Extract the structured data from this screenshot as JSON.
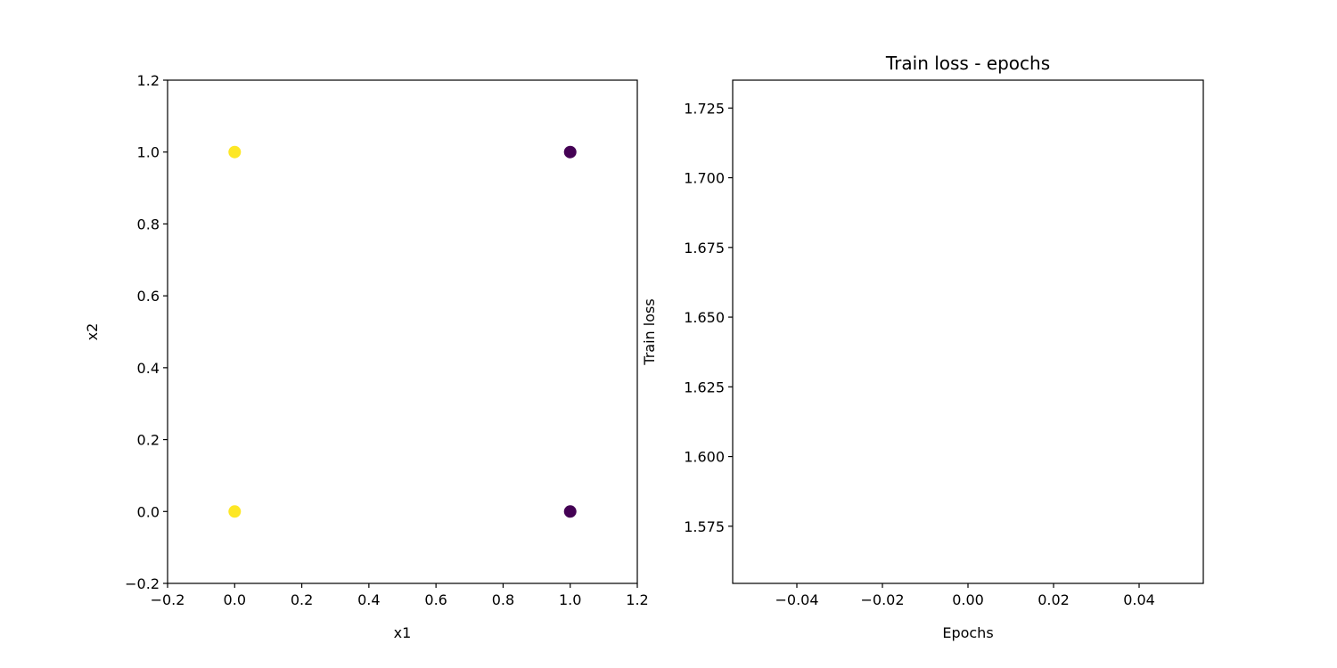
{
  "chart_data": [
    {
      "type": "scatter",
      "title": "",
      "xlabel": "x1",
      "ylabel": "x2",
      "xlim": [
        -0.2,
        1.2
      ],
      "ylim": [
        -0.2,
        1.2
      ],
      "xticks": [
        -0.2,
        0.0,
        0.2,
        0.4,
        0.6,
        0.8,
        1.0,
        1.2
      ],
      "xtick_labels": [
        "−0.2",
        "0.0",
        "0.2",
        "0.4",
        "0.6",
        "0.8",
        "1.0",
        "1.2"
      ],
      "yticks": [
        -0.2,
        0.0,
        0.2,
        0.4,
        0.6,
        0.8,
        1.0,
        1.2
      ],
      "ytick_labels": [
        "−0.2",
        "0.0",
        "0.2",
        "0.4",
        "0.6",
        "0.8",
        "1.0",
        "1.2"
      ],
      "grid": false,
      "points": [
        {
          "x": 0,
          "y": 0,
          "color": "#fde725"
        },
        {
          "x": 0,
          "y": 1,
          "color": "#fde725"
        },
        {
          "x": 1,
          "y": 0,
          "color": "#440154"
        },
        {
          "x": 1,
          "y": 1,
          "color": "#440154"
        }
      ]
    },
    {
      "type": "line",
      "title": "Train loss - epochs",
      "xlabel": "Epochs",
      "ylabel": "Train loss",
      "xlim": [
        -0.055,
        0.055
      ],
      "ylim": [
        1.5545,
        1.735
      ],
      "xticks": [
        -0.04,
        -0.02,
        0.0,
        0.02,
        0.04
      ],
      "xtick_labels": [
        "−0.04",
        "−0.02",
        "0.00",
        "0.02",
        "0.04"
      ],
      "yticks": [
        1.575,
        1.6,
        1.625,
        1.65,
        1.675,
        1.7,
        1.725
      ],
      "ytick_labels": [
        "1.575",
        "1.600",
        "1.625",
        "1.650",
        "1.675",
        "1.700",
        "1.725"
      ],
      "grid": false,
      "series": []
    }
  ]
}
